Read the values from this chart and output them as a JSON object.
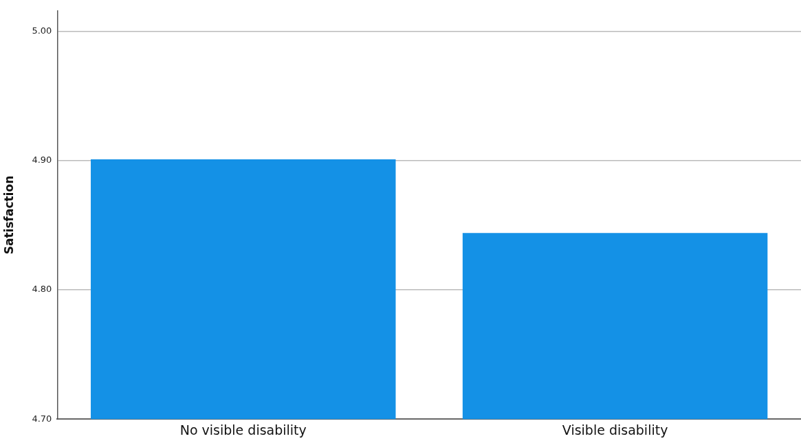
{
  "chart_data": {
    "type": "bar",
    "ylabel": "Satisfaction",
    "categories": [
      "No visible disability",
      "Visible disability"
    ],
    "values": [
      4.901,
      4.844
    ],
    "color": "#1491e6",
    "ylim": [
      4.7,
      5.016
    ],
    "yticks": [
      {
        "value": 4.7,
        "label": "4.70"
      },
      {
        "value": 4.8,
        "label": "4.80"
      },
      {
        "value": 4.9,
        "label": "4.90"
      },
      {
        "value": 5.0,
        "label": "5.00"
      }
    ],
    "grid": "y"
  }
}
